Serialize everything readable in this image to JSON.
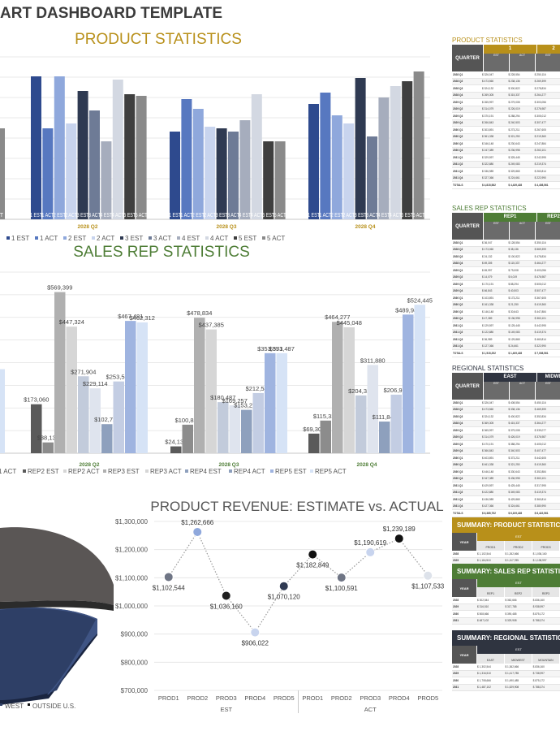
{
  "page": {
    "title": "ART DASHBOARD TEMPLATE"
  },
  "chart_data": [
    {
      "id": "product-statistics",
      "type": "bar",
      "title": "PRODUCT STATISTICS",
      "categories": [
        "2028 Q2",
        "2028 Q3",
        "2028 Q4"
      ],
      "bar_labels": [
        "1 EST",
        "1 ACT",
        "2 EST",
        "2 ACT",
        "3 EST",
        "3 ACT",
        "4 EST",
        "4 ACT",
        "5 EST",
        "5 ACT"
      ],
      "partial_bar_labels": [
        "T"
      ],
      "partial_bar_values": [
        0.56
      ],
      "ylim": [
        0,
        1
      ],
      "series": [
        {
          "name": "1 EST",
          "color": "#2e4a8e",
          "values": [
            0.88,
            0.54,
            0.71
          ]
        },
        {
          "name": "1 ACT",
          "color": "#5778c0",
          "values": [
            0.56,
            0.74,
            0.78
          ]
        },
        {
          "name": "2 EST",
          "color": "#8fa8dc",
          "values": [
            0.88,
            0.68,
            0.64
          ]
        },
        {
          "name": "2 ACT",
          "color": "#c8d4ee",
          "values": [
            0.59,
            0.57,
            0.59
          ]
        },
        {
          "name": "3 EST",
          "color": "#2f3a52",
          "values": [
            0.79,
            0.56,
            0.87
          ]
        },
        {
          "name": "3 ACT",
          "color": "#6e7b96",
          "values": [
            0.67,
            0.54,
            0.51
          ]
        },
        {
          "name": "4 EST",
          "color": "#a6adbd",
          "values": [
            0.48,
            0.61,
            0.75
          ]
        },
        {
          "name": "4 ACT",
          "color": "#d3d8e2",
          "values": [
            0.86,
            0.77,
            0.82
          ]
        },
        {
          "name": "5 EST",
          "color": "#3f3f3f",
          "values": [
            0.77,
            0.48,
            0.85
          ]
        },
        {
          "name": "5 ACT",
          "color": "#8a8a8a",
          "values": [
            0.76,
            0.48,
            0.91
          ]
        }
      ],
      "legend": [
        "1 EST",
        "1 ACT",
        "2 EST",
        "2 ACT",
        "3 EST",
        "3 ACT",
        "4 EST",
        "4 ACT",
        "5 EST",
        "5 ACT"
      ],
      "legend_position": "bottom"
    },
    {
      "id": "sales-rep-statistics",
      "type": "bar",
      "title": "SALES REP STATISTICS",
      "categories": [
        "2028 Q2",
        "2028 Q3",
        "2028 Q4"
      ],
      "ylim": [
        0,
        640000
      ],
      "series": [
        {
          "name": "REP2 EST",
          "color": "#5a5a5a",
          "values": [
            173060,
            24132,
            69305
          ]
        },
        {
          "name": "REP2 ACT",
          "color": "#8c8c8c",
          "values": [
            38136,
            100822,
            115337
          ]
        },
        {
          "name": "REP3 EST",
          "color": "#b0b0b0",
          "values": [
            569399,
            478834,
            464277
          ]
        },
        {
          "name": "REP3 ACT",
          "color": "#d6d6d6",
          "values": [
            447324,
            437385,
            445048
          ]
        },
        {
          "name": "REP4 EST",
          "color": "#c2cbdb",
          "values": [
            271904,
            180487,
            204328
          ]
        },
        {
          "name": "REP4 ACT",
          "color": "#dfe4ee",
          "values": [
            229114,
            169257,
            311880
          ]
        },
        {
          "name": "REP4 ACT",
          "color": "#8ea0bd",
          "values": [
            102721,
            153279,
            111847
          ]
        },
        {
          "name": "REP5 EST",
          "color": "#c3cde3",
          "values": [
            253563,
            212586,
            206970
          ]
        },
        {
          "name": "REP5 EST",
          "color": "#9fb4e0",
          "values": [
            467481,
            353571,
            489945
          ]
        },
        {
          "name": "REP5 ACT",
          "color": "#d6e3f6",
          "values": [
            462312,
            353487,
            524445
          ]
        }
      ],
      "partial_series_values": [
        297000,
        45000
      ],
      "value_labels": [
        [
          "$173,060",
          "$38,136",
          "$569,399",
          "$447,324",
          "$271,904",
          "$229,114",
          "$102,721",
          "$253,563",
          "$467,481",
          "$462,312"
        ],
        [
          "$24,132",
          "$100,822",
          "$478,834",
          "$437,385",
          "$180,487",
          "$169,257",
          "$153,279",
          "$212,586",
          "$353,571",
          "$353,487"
        ],
        [
          "$69,305",
          "$115,337",
          "$464,277",
          "$445,048",
          "$204,328",
          "$311,880",
          "$111,847",
          "$206,970",
          "$489,945",
          "$524,445"
        ]
      ],
      "legend": [
        "1 ACT",
        "REP2 EST",
        "REP2 ACT",
        "REP3 EST",
        "REP3 ACT",
        "REP4 EST",
        "REP4 ACT",
        "REP5 EST",
        "REP5 ACT"
      ],
      "legend_position": "bottom"
    },
    {
      "id": "regional-pie",
      "type": "pie",
      "legend": [
        "WEST",
        "OUTSIDE U.S."
      ],
      "legend_colors": [
        "#2e3f66",
        "#111111"
      ],
      "legend_position": "bottom"
    },
    {
      "id": "product-revenue",
      "type": "line",
      "title": "PRODUCT REVENUE: ESTIMATE vs. ACTUAL",
      "categories": [
        "PROD1",
        "PROD2",
        "PROD3",
        "PROD4",
        "PROD5",
        "PROD1",
        "PROD2",
        "PROD3",
        "PROD4",
        "PROD5"
      ],
      "groups": [
        "EST",
        "ACT"
      ],
      "values": [
        1102544,
        1262666,
        1036160,
        906022,
        1070120,
        1182849,
        1100591,
        1190619,
        1239189,
        1107533
      ],
      "value_labels": [
        "$1,102,544",
        "$1,262,666",
        "$1,036,160",
        "$906,022",
        "$1,070,120",
        "$1,182,849",
        "$1,100,591",
        "$1,190,619",
        "$1,239,189",
        "$1,107,533"
      ],
      "marker_colors": [
        "#6f7585",
        "#8fa8dc",
        "#1f1f1f",
        "#c8d4ee",
        "#2f3a52",
        "#111111",
        "#6f7585",
        "#c8d4ee",
        "#111111",
        "#dde2ea"
      ],
      "ylim": [
        700000,
        1300000
      ],
      "yticks": [
        "$700,000",
        "$800,000",
        "$900,000",
        "$1,000,000",
        "$1,100,000",
        "$1,200,000",
        "$1,300,000"
      ],
      "grid": true
    }
  ],
  "tables": {
    "product": {
      "title": "PRODUCT STATISTICS",
      "accent": "#b8901a",
      "quarter_label": "QUARTER",
      "groups": [
        "1",
        "2"
      ],
      "subheaders": [
        "EST",
        "ACT",
        "EST"
      ],
      "rows": [
        [
          "2028 Q1",
          "$ 326,047",
          "$ 228,554",
          "$ 250,116"
        ],
        [
          "2028 Q2",
          "$ 473,560",
          "$ 238,136",
          "$ 269,399"
        ],
        [
          "2028 Q3",
          "$ 324,132",
          "$ 300,822",
          "$ 278,834"
        ],
        [
          "2028 Q4",
          "$ 269,305",
          "$ 315,337",
          "$ 264,277"
        ],
        [
          "2029 Q1",
          "$ 265,997",
          "$ 279,008",
          "$ 303,056"
        ],
        [
          "2029 Q2",
          "$ 314,079",
          "$ 226,019",
          "$ 276,987"
        ],
        [
          "2029 Q3",
          "$ 370,191",
          "$ 288,294",
          "$ 305,012"
        ],
        [
          "2029 Q4",
          "$ 266,843",
          "$ 240,503",
          "$ 307,477"
        ],
        [
          "2030 Q1",
          "$ 303,891",
          "$ 273,211",
          "$ 267,605"
        ],
        [
          "2030 Q2",
          "$ 361,338",
          "$ 321,250",
          "$ 219,360"
        ],
        [
          "2030 Q3",
          "$ 346,148",
          "$ 230,643",
          "$ 247,884"
        ],
        [
          "2030 Q4",
          "$ 247,389",
          "$ 236,998",
          "$ 263,101"
        ],
        [
          "2031 Q1",
          "$ 329,597",
          "$ 325,445",
          "$ 242,995"
        ],
        [
          "2031 Q2",
          "$ 322,880",
          "$ 249,083",
          "$ 219,374"
        ],
        [
          "2031 Q3",
          "$ 336,989",
          "$ 329,865",
          "$ 260,814"
        ],
        [
          "2031 Q4",
          "$ 327,366",
          "$ 224,661",
          "$ 222,990"
        ]
      ],
      "total": [
        "TOTALS",
        "$ 4,815,582",
        "$ 4,439,428",
        "$ 4,408,561"
      ]
    },
    "sales": {
      "title": "SALES REP STATISTICS",
      "accent": "#4e7d36",
      "quarter_label": "QUARTER",
      "groups": [
        "REP1",
        "REP2"
      ],
      "subheaders": [
        "EST",
        "ACT",
        "EST"
      ],
      "rows": [
        [
          "2028 Q1",
          "$ 36,047",
          "$ 128,554",
          "$ 350,116"
        ],
        [
          "2028 Q2",
          "$ 173,060",
          "$ 38,136",
          "$ 569,399"
        ],
        [
          "2028 Q3",
          "$ 24,132",
          "$ 100,822",
          "$ 478,834"
        ],
        [
          "2028 Q4",
          "$ 69,305",
          "$ 115,337",
          "$ 464,277"
        ],
        [
          "2029 Q1",
          "$ 65,997",
          "$ 79,008",
          "$ 403,056"
        ],
        [
          "2029 Q2",
          "$ 14,079",
          "$ 6,019",
          "$ 476,987"
        ],
        [
          "2029 Q3",
          "$ 170,191",
          "$ 88,294",
          "$ 505,012"
        ],
        [
          "2029 Q4",
          "$ 66,843",
          "$ 40,503",
          "$ 507,477"
        ],
        [
          "2030 Q1",
          "$ 103,891",
          "$ 173,211",
          "$ 367,605"
        ],
        [
          "2030 Q2",
          "$ 161,338",
          "$ 21,250",
          "$ 419,360"
        ],
        [
          "2030 Q3",
          "$ 146,148",
          "$ 30,643",
          "$ 447,884"
        ],
        [
          "2030 Q4",
          "$ 47,389",
          "$ 136,998",
          "$ 363,101"
        ],
        [
          "2031 Q1",
          "$ 129,597",
          "$ 125,445",
          "$ 442,995"
        ],
        [
          "2031 Q2",
          "$ 122,880",
          "$ 149,083",
          "$ 419,374"
        ],
        [
          "2031 Q3",
          "$ 36,989",
          "$ 129,865",
          "$ 460,814"
        ],
        [
          "2031 Q4",
          "$ 127,366",
          "$ 24,661",
          "$ 322,990"
        ]
      ],
      "total": [
        "TOTALS",
        "$ 1,515,252",
        "$ 1,409,428",
        "$ 7,008,561"
      ]
    },
    "regional": {
      "title": "REGIONAL STATISTICS",
      "accent": "#2f3440",
      "quarter_label": "QUARTER",
      "groups": [
        "EAST",
        "MIDWE"
      ],
      "subheaders": [
        "EST",
        "ACT",
        "EST"
      ],
      "rows": [
        [
          "2028 Q1",
          "$ 326,047",
          "$ 408,554",
          "$ 450,116"
        ],
        [
          "2028 Q2",
          "$ 473,560",
          "$ 338,136",
          "$ 469,399"
        ],
        [
          "2028 Q3",
          "$ 324,132",
          "$ 400,822",
          "$ 352,834"
        ],
        [
          "2028 Q4",
          "$ 369,305",
          "$ 415,337",
          "$ 364,277"
        ],
        [
          "2029 Q1",
          "$ 365,997",
          "$ 379,008",
          "$ 339,077"
        ],
        [
          "2029 Q2",
          "$ 314,079",
          "$ 426,019",
          "$ 376,987"
        ],
        [
          "2029 Q3",
          "$ 470,191",
          "$ 388,294",
          "$ 405,012"
        ],
        [
          "2029 Q4",
          "$ 366,843",
          "$ 340,503",
          "$ 407,477"
        ],
        [
          "2030 Q1",
          "$ 403,891",
          "$ 373,211",
          "$ 442,605"
        ],
        [
          "2030 Q2",
          "$ 461,338",
          "$ 321,250",
          "$ 419,360"
        ],
        [
          "2030 Q3",
          "$ 446,148",
          "$ 330,643",
          "$ 352,884"
        ],
        [
          "2030 Q4",
          "$ 347,389",
          "$ 436,998",
          "$ 363,101"
        ],
        [
          "2031 Q1",
          "$ 429,597",
          "$ 425,445",
          "$ 317,995"
        ],
        [
          "2031 Q2",
          "$ 422,880",
          "$ 349,083",
          "$ 419,374"
        ],
        [
          "2031 Q3",
          "$ 436,989",
          "$ 429,865",
          "$ 360,814"
        ],
        [
          "2031 Q4",
          "$ 427,366",
          "$ 324,661",
          "$ 380,990"
        ]
      ],
      "total": [
        "TOTALS",
        "$ 6,385,752",
        "$ 6,109,428",
        "$ 6,422,561"
      ]
    }
  },
  "summaries": [
    {
      "title": "SUMMARY: PRODUCT STATISTICS",
      "accent": "#b8901a",
      "year_label": "YEAR",
      "group": "EST",
      "subheaders": [
        "PROD1",
        "PROD2",
        "PROD3"
      ],
      "rows": [
        [
          "2028",
          "$ 1,102,544",
          "$ 1,262,666",
          "$ 1,036,160"
        ],
        [
          "2029",
          "$ 1,116,510",
          "$ 1,117,785",
          "$ 1,138,997"
        ],
        [
          "2030",
          "$ 1,206,666",
          "$ 1,190,485",
          "$ 1,075,172"
        ],
        [
          "2031",
          "$ 1,287,102",
          "$ 1,329,908",
          "$ 1,188,374"
        ]
      ]
    },
    {
      "title": "SUMMARY: SALES REP STATISTICS",
      "accent": "#4e7d36",
      "year_label": "YEAR",
      "group": "EST",
      "subheaders": [
        "REP1",
        "REP2",
        "REP3"
      ],
      "rows": [
        [
          "2028",
          "$ 302,544",
          "$ 362,666",
          "$ 836,160"
        ],
        [
          "2029",
          "$ 316,510",
          "$ 317,785",
          "$ 938,997"
        ],
        [
          "2030",
          "$ 508,666",
          "$ 390,485",
          "$ 875,172"
        ],
        [
          "2031",
          "$ 487,102",
          "$ 329,908",
          "$ 788,374"
        ]
      ]
    },
    {
      "title": "SUMMARY: REGIONAL STATISTICS",
      "accent": "#2f3440",
      "year_label": "YEAR",
      "group": "EST",
      "subheaders": [
        "EAST",
        "MIDWEST",
        "MOUNTAIN"
      ],
      "rows": [
        [
          "2028",
          "$ 1,302,544",
          "$ 1,362,666",
          "$ 836,160"
        ],
        [
          "2029",
          "$ 1,316,510",
          "$ 1,417,785",
          "$ 738,997"
        ],
        [
          "2030",
          "$ 1,708,666",
          "$ 1,490,485",
          "$ 875,172"
        ],
        [
          "2031",
          "$ 1,487,102",
          "$ 1,529,908",
          "$ 788,374"
        ]
      ]
    }
  ]
}
